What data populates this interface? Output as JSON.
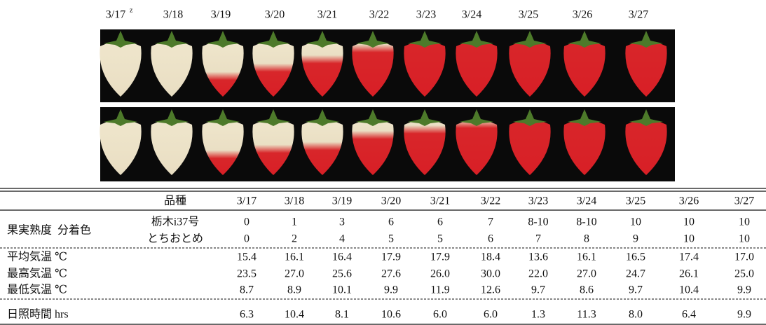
{
  "photo_dates": [
    "3/17",
    "3/18",
    "3/19",
    "3/20",
    "3/21",
    "3/22",
    "3/23",
    "3/24",
    "3/25",
    "3/26",
    "3/27"
  ],
  "photo_note_mark": "z",
  "table": {
    "header": {
      "variety": "品種",
      "dates": [
        "3/17",
        "3/18",
        "3/19",
        "3/20",
        "3/21",
        "3/22",
        "3/23",
        "3/24",
        "3/25",
        "3/26",
        "3/27"
      ]
    },
    "ripeness": {
      "label": "果実熟度",
      "sublabel": "分着色",
      "rows": [
        {
          "variety": "栃木i37号",
          "values": [
            "0",
            "1",
            "3",
            "6",
            "6",
            "7",
            "8-10",
            "8-10",
            "10",
            "10",
            "10"
          ]
        },
        {
          "variety": "とちおとめ",
          "values": [
            "0",
            "2",
            "4",
            "5",
            "5",
            "6",
            "7",
            "8",
            "9",
            "10",
            "10"
          ]
        }
      ]
    },
    "weather": [
      {
        "label": "平均気温 ℃",
        "values": [
          "15.4",
          "16.1",
          "16.4",
          "17.9",
          "17.9",
          "18.4",
          "13.6",
          "16.1",
          "16.5",
          "17.4",
          "17.0"
        ]
      },
      {
        "label": "最高気温 ℃",
        "values": [
          "23.5",
          "27.0",
          "25.6",
          "27.6",
          "26.0",
          "30.0",
          "22.0",
          "27.0",
          "24.7",
          "26.1",
          "25.0"
        ]
      },
      {
        "label": "最低気温 ℃",
        "values": [
          "8.7",
          "8.9",
          "10.1",
          "9.9",
          "11.9",
          "12.6",
          "9.7",
          "8.6",
          "9.7",
          "10.4",
          "9.9"
        ]
      }
    ],
    "sunshine": {
      "label": "日照時間 hrs",
      "values": [
        "6.3",
        "10.4",
        "8.1",
        "10.6",
        "6.0",
        "6.0",
        "1.3",
        "11.3",
        "8.0",
        "6.4",
        "9.9"
      ]
    }
  }
}
